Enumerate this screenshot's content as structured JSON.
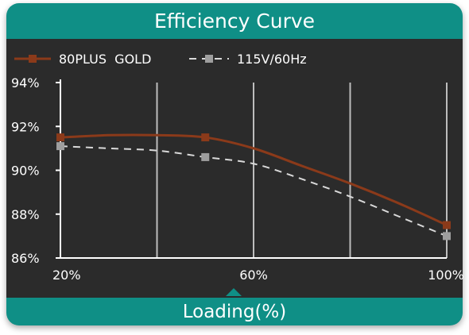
{
  "header": {
    "title": "Efficiency Curve"
  },
  "footer": {
    "label": "Loading(%)"
  },
  "colors": {
    "frame": "#0f8f86",
    "panel": "#2b2b2b",
    "series_gold": "#8b3a1a",
    "series_115v": "#d9d9d9",
    "gridline": "#bdbdbd"
  },
  "chart_data": {
    "type": "line",
    "title": "Efficiency Curve",
    "xlabel": "Loading(%)",
    "ylabel": "",
    "xlim": [
      20,
      100
    ],
    "ylim": [
      86,
      94
    ],
    "x_ticks": [
      "20%",
      "60%",
      "100%"
    ],
    "x_tick_values": [
      20,
      60,
      100
    ],
    "y_ticks": [
      "94%",
      "92%",
      "90%",
      "88%",
      "86%"
    ],
    "y_tick_values": [
      94,
      92,
      90,
      88,
      86
    ],
    "vertical_grid_x": [
      20,
      40,
      60,
      80,
      100
    ],
    "grid": true,
    "legend_position": "top-left",
    "series": [
      {
        "name": "80PLUS  GOLD",
        "style": "solid",
        "color": "#8b3a1a",
        "curve": [
          [
            20,
            91.5
          ],
          [
            30,
            91.6
          ],
          [
            40,
            91.6
          ],
          [
            50,
            91.5
          ],
          [
            60,
            91.0
          ],
          [
            70,
            90.2
          ],
          [
            80,
            89.4
          ],
          [
            90,
            88.5
          ],
          [
            100,
            87.5
          ]
        ],
        "markers": [
          [
            20,
            91.5
          ],
          [
            50,
            91.5
          ],
          [
            100,
            87.5
          ]
        ]
      },
      {
        "name": "115V/60Hz",
        "style": "dashed",
        "color": "#d9d9d9",
        "curve": [
          [
            20,
            91.1
          ],
          [
            30,
            91.0
          ],
          [
            40,
            90.9
          ],
          [
            50,
            90.6
          ],
          [
            60,
            90.3
          ],
          [
            70,
            89.6
          ],
          [
            80,
            88.8
          ],
          [
            90,
            87.9
          ],
          [
            100,
            87.0
          ]
        ],
        "markers": [
          [
            20,
            91.1
          ],
          [
            50,
            90.6
          ],
          [
            100,
            87.0
          ]
        ]
      }
    ]
  }
}
